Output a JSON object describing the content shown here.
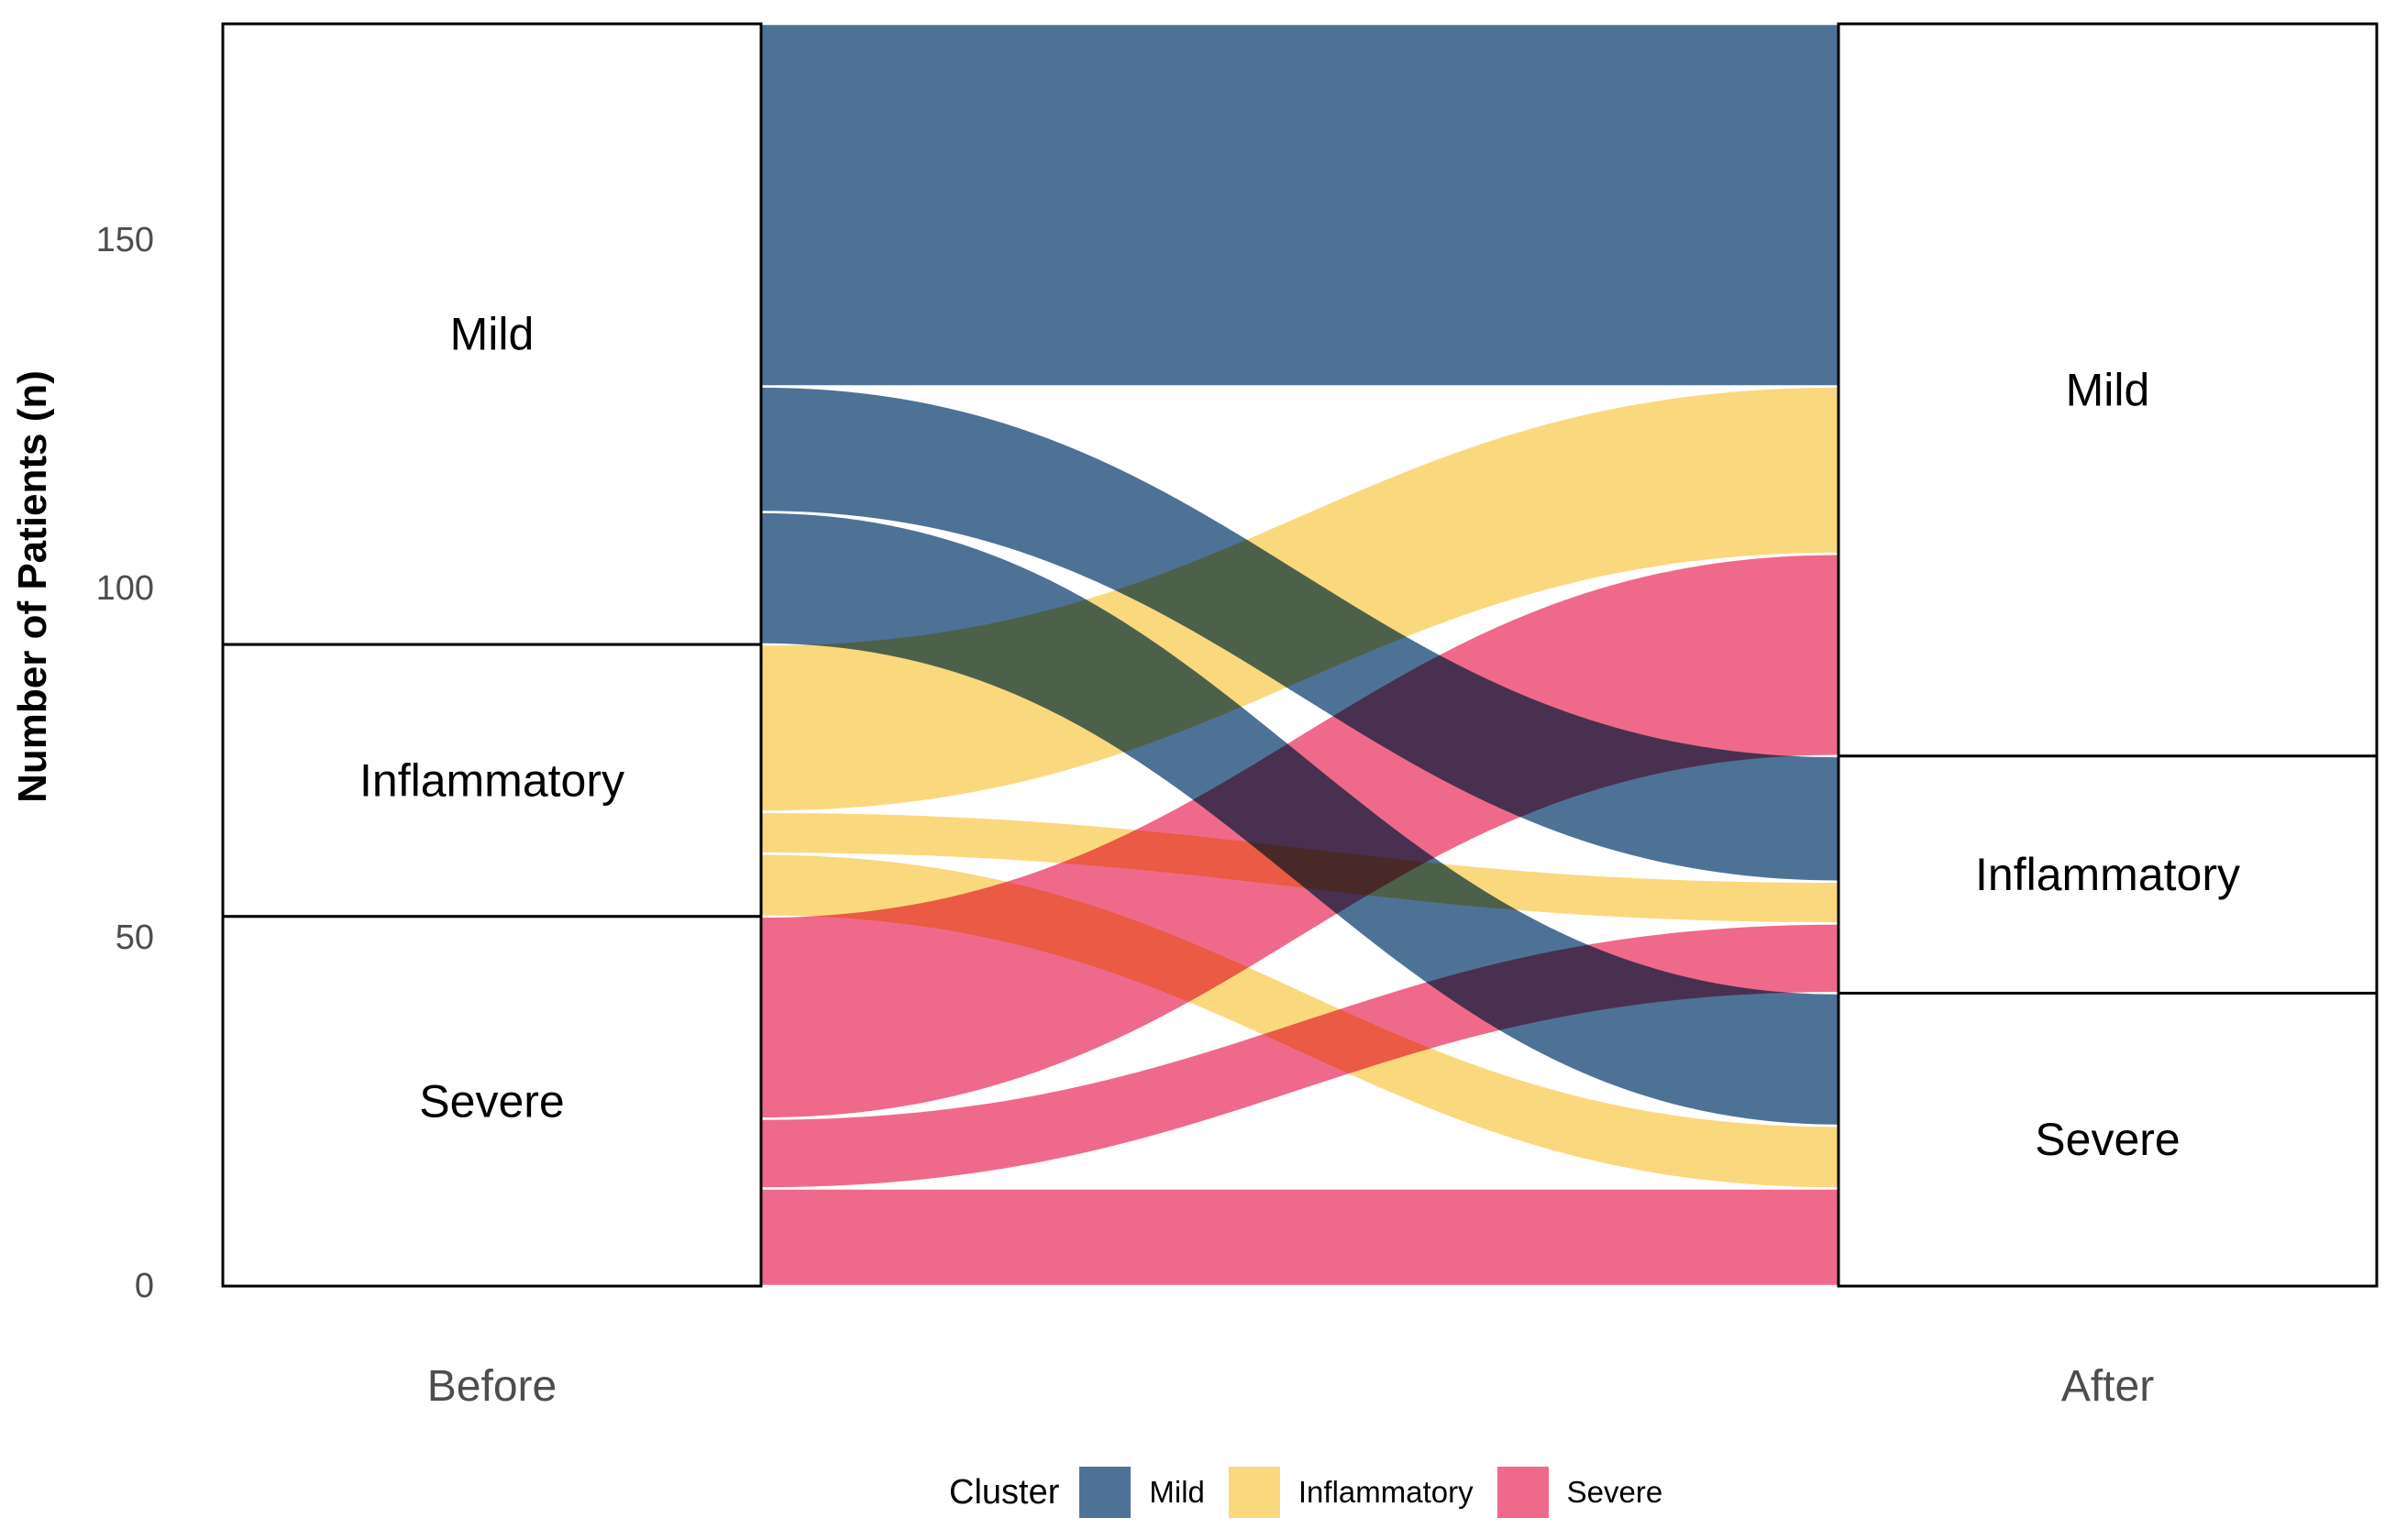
{
  "chart_data": {
    "type": "alluvial",
    "ylabel": "Number of Patients (n)",
    "x_categories": [
      "Before",
      "After"
    ],
    "y_ticks": [
      0,
      50,
      100,
      150
    ],
    "y_max": 181,
    "grid": "off",
    "clusters": [
      {
        "name": "Mild",
        "color": "#4E7296"
      },
      {
        "name": "Inflammatory",
        "color": "#FAD87E"
      },
      {
        "name": "Severe",
        "color": "#EF6A8A"
      }
    ],
    "strata": {
      "before": [
        {
          "name": "Mild",
          "value": 89
        },
        {
          "name": "Inflammatory",
          "value": 39
        },
        {
          "name": "Severe",
          "value": 53
        }
      ],
      "after": [
        {
          "name": "Mild",
          "value": 105
        },
        {
          "name": "Inflammatory",
          "value": 34
        },
        {
          "name": "Severe",
          "value": 42
        }
      ]
    },
    "flows": [
      {
        "from": "Mild",
        "to": "Mild",
        "value": 52
      },
      {
        "from": "Mild",
        "to": "Inflammatory",
        "value": 18
      },
      {
        "from": "Mild",
        "to": "Severe",
        "value": 19
      },
      {
        "from": "Inflammatory",
        "to": "Mild",
        "value": 24
      },
      {
        "from": "Inflammatory",
        "to": "Inflammatory",
        "value": 6
      },
      {
        "from": "Inflammatory",
        "to": "Severe",
        "value": 9
      },
      {
        "from": "Severe",
        "to": "Mild",
        "value": 29
      },
      {
        "from": "Severe",
        "to": "Inflammatory",
        "value": 10
      },
      {
        "from": "Severe",
        "to": "Severe",
        "value": 14
      }
    ],
    "legend": {
      "title": "Cluster",
      "entries": [
        "Mild",
        "Inflammatory",
        "Severe"
      ],
      "position": "bottom"
    }
  },
  "colors": {
    "axis_text": "#4D4D4D",
    "stratum_border": "#000000",
    "stratum_fill": "#FFFFFF",
    "background": "#FFFFFF"
  }
}
